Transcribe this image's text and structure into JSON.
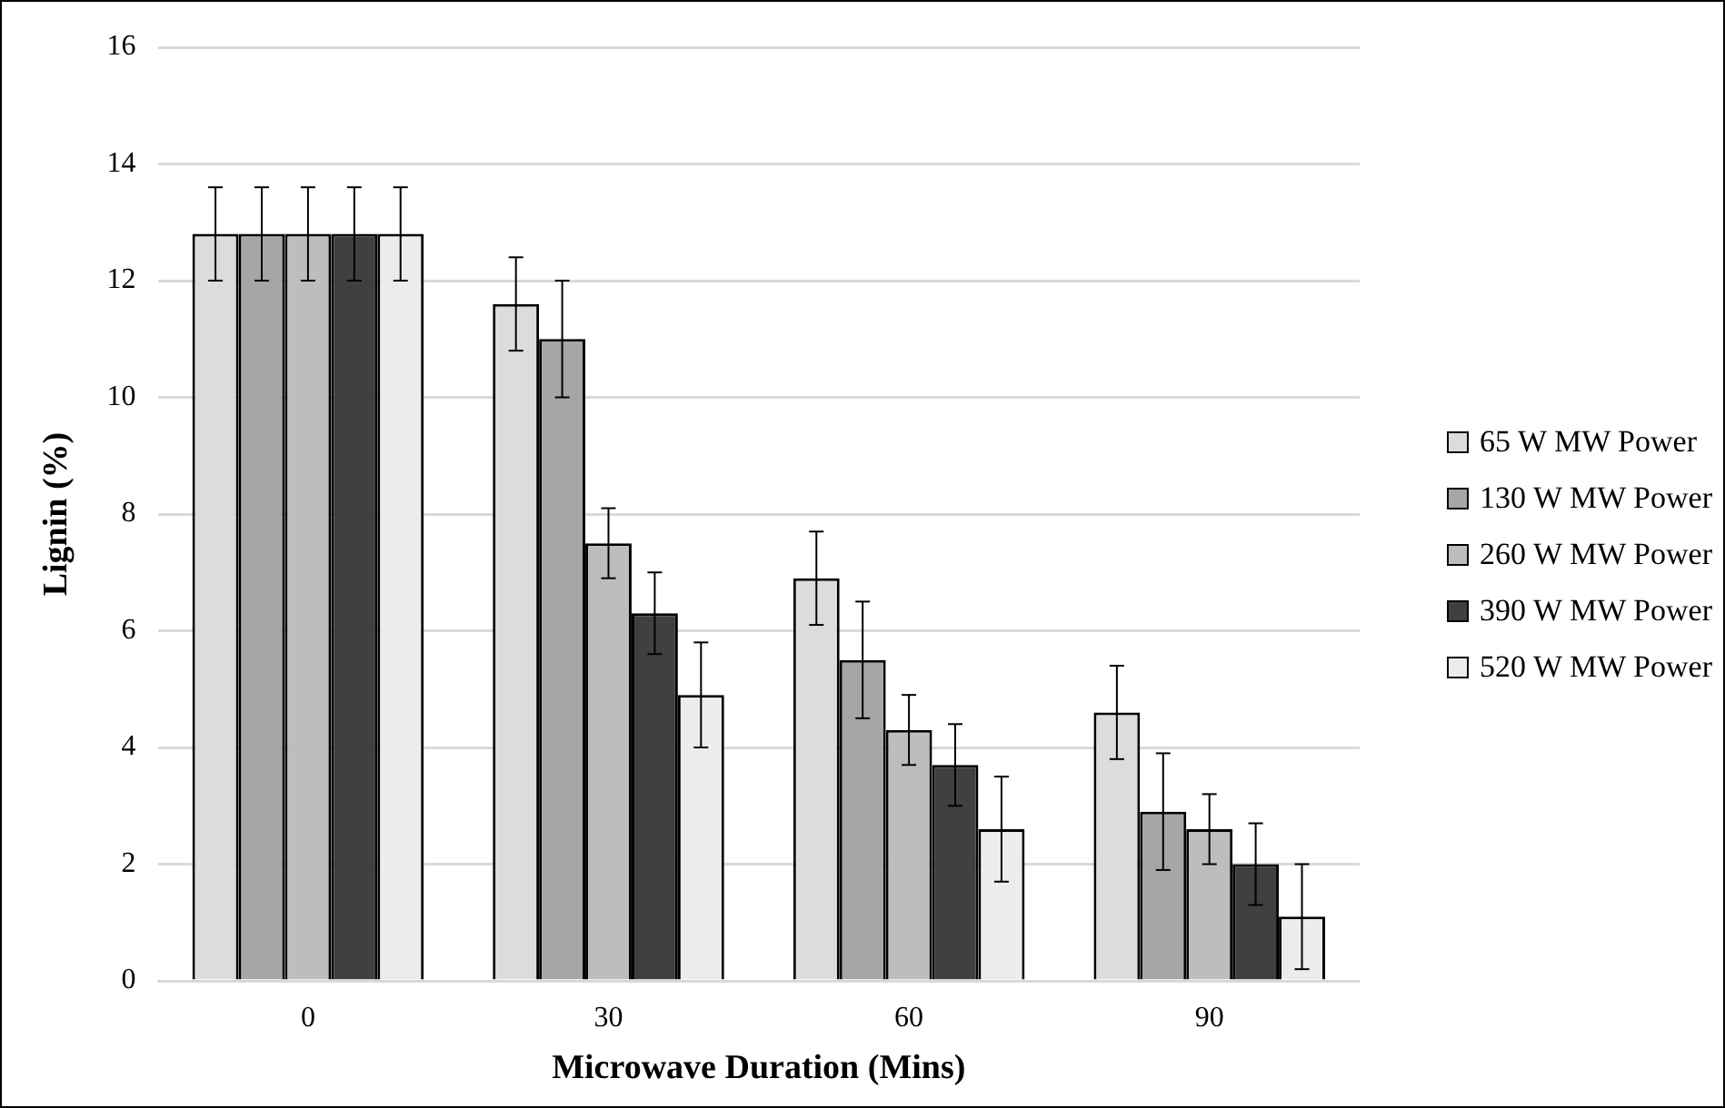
{
  "chart_data": {
    "type": "bar",
    "xlabel": "Microwave Duration (Mins)",
    "ylabel": "Lignin (%)",
    "categories": [
      "0",
      "30",
      "60",
      "90"
    ],
    "series": [
      {
        "name": "65 W MW Power",
        "color": "#dcdcdc",
        "values": [
          12.8,
          11.6,
          6.9,
          4.6
        ],
        "errors": [
          0.8,
          0.8,
          0.8,
          0.8
        ]
      },
      {
        "name": "130 W MW Power",
        "color": "#a6a6a6",
        "values": [
          12.8,
          11.0,
          5.5,
          2.9
        ],
        "errors": [
          0.8,
          1.0,
          1.0,
          1.0
        ]
      },
      {
        "name": "260 W MW Power",
        "color": "#bdbdbd",
        "values": [
          12.8,
          7.5,
          4.3,
          2.6
        ],
        "errors": [
          0.8,
          0.6,
          0.6,
          0.6
        ]
      },
      {
        "name": "390 W MW Power",
        "color": "#404040",
        "values": [
          12.8,
          6.3,
          3.7,
          2.0
        ],
        "errors": [
          0.8,
          0.7,
          0.7,
          0.7
        ]
      },
      {
        "name": "520 W MW Power",
        "color": "#ececec",
        "values": [
          12.8,
          4.9,
          2.6,
          1.1
        ],
        "errors": [
          0.8,
          0.9,
          0.9,
          0.9
        ]
      }
    ],
    "ylim": [
      0,
      16
    ],
    "yticks": [
      0,
      2,
      4,
      6,
      8,
      10,
      12,
      14,
      16
    ],
    "grid": "y",
    "legend": "right"
  }
}
